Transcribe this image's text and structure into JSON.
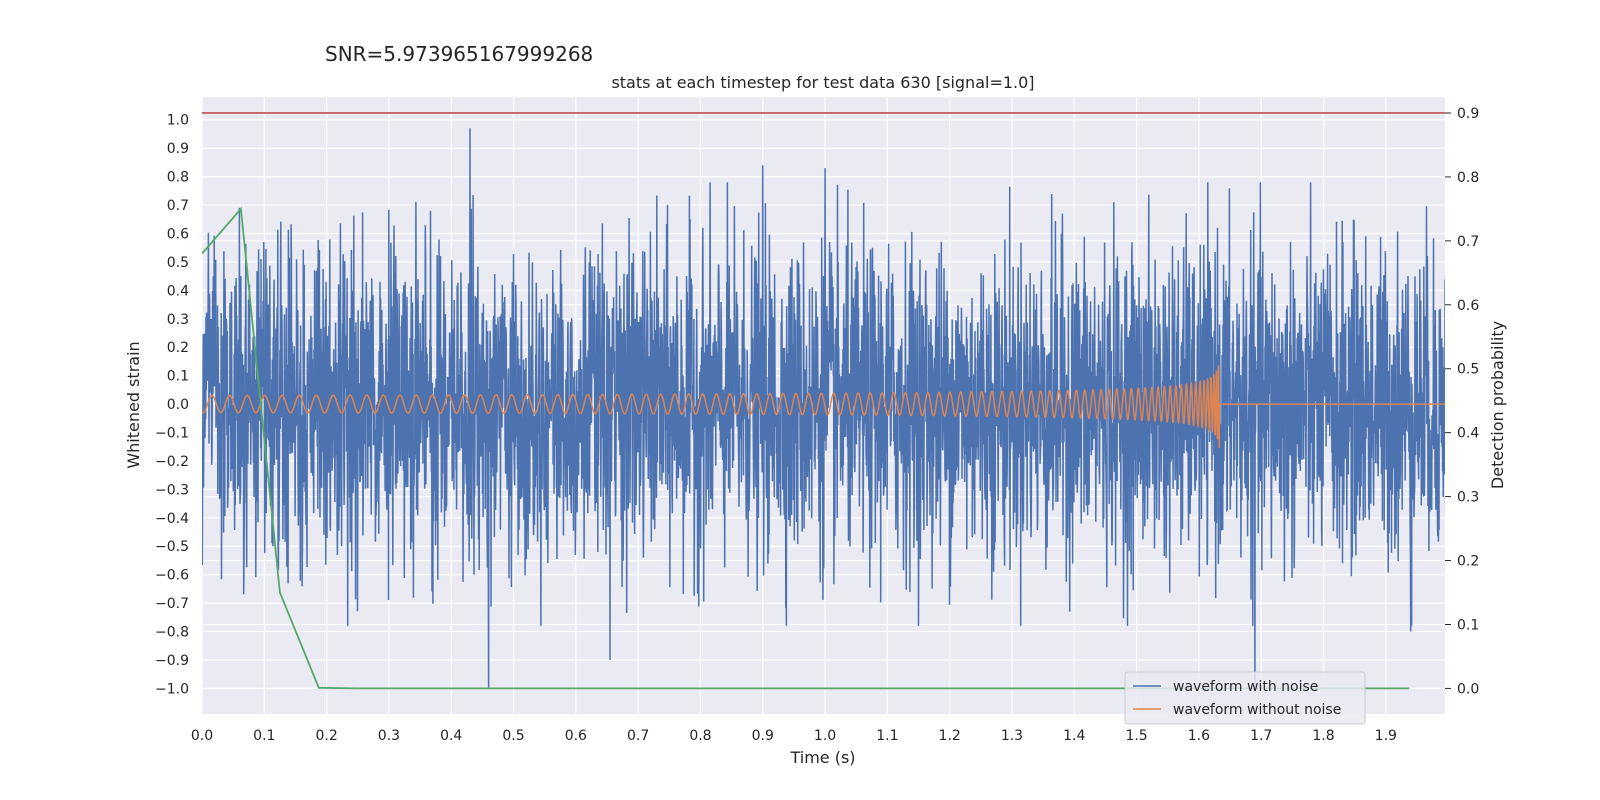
{
  "chart_data": {
    "type": "line",
    "suptitle": "SNR=5.973965167999268",
    "title": "stats at each timestep for test data 630 [signal=1.0]",
    "xlabel": "Time (s)",
    "ylabel": "Whitened strain",
    "ylabel_right": "Detection probability",
    "xlim": [
      0.0,
      1.995
    ],
    "ylim": [
      -1.09,
      1.08
    ],
    "ylim_right": [
      -0.04,
      0.925
    ],
    "xticks": [
      "0.0",
      "0.1",
      "0.2",
      "0.3",
      "0.4",
      "0.5",
      "0.6",
      "0.7",
      "0.8",
      "0.9",
      "1.0",
      "1.1",
      "1.2",
      "1.3",
      "1.4",
      "1.5",
      "1.6",
      "1.7",
      "1.8",
      "1.9"
    ],
    "yticks": [
      "1.0",
      "0.9",
      "0.8",
      "0.7",
      "0.6",
      "0.5",
      "0.4",
      "0.3",
      "0.2",
      "0.1",
      "0.0",
      "−0.1",
      "−0.2",
      "−0.3",
      "−0.4",
      "−0.5",
      "−0.6",
      "−0.7",
      "−0.8",
      "−0.9",
      "−1.0"
    ],
    "yticks_right": [
      "0.9",
      "0.8",
      "0.7",
      "0.6",
      "0.5",
      "0.4",
      "0.3",
      "0.2",
      "0.1",
      "0.0"
    ],
    "grid": true,
    "legend_position": "lower-right",
    "series": [
      {
        "name": "waveform with noise",
        "color": "#4c72b0",
        "axis": "left",
        "sample_rate": 2048,
        "duration": 2.0,
        "amplitude_std": 0.27,
        "peaks": [
          [
            0.06,
            0.69
          ],
          [
            0.43,
            0.97
          ],
          [
            0.46,
            -1.0
          ],
          [
            0.655,
            -0.9
          ],
          [
            0.9,
            0.84
          ],
          [
            1.0,
            0.83
          ],
          [
            1.69,
            -1.0
          ],
          [
            1.94,
            -0.8
          ]
        ]
      },
      {
        "name": "waveform without noise",
        "color": "#dd8452",
        "axis": "left",
        "chirp_start_freq_hz": 35,
        "merger_time": 1.635,
        "start_amplitude": 0.03,
        "peak_amplitude": 0.17,
        "post_merger_value": 0.0
      },
      {
        "name": "",
        "color": "#55a868",
        "axis": "right",
        "x": [
          0.0,
          0.0625,
          0.125,
          0.1875,
          0.25,
          0.3125,
          0.375,
          0.4375,
          0.5,
          0.5625,
          0.625,
          0.6875,
          0.75,
          0.8125,
          0.875,
          0.9375,
          1.0,
          1.0625,
          1.125,
          1.1875,
          1.25,
          1.3125,
          1.375,
          1.4375,
          1.5,
          1.5625,
          1.625,
          1.6875,
          1.75,
          1.8125,
          1.875,
          1.9375
        ],
        "y": [
          0.68,
          0.75,
          0.15,
          0.001,
          0.0,
          0.0,
          0.0,
          0.0,
          0.0,
          0.0,
          0.0,
          0.0,
          0.0,
          0.0,
          0.0,
          0.0,
          0.0,
          0.0,
          0.0,
          0.0,
          0.0,
          0.0,
          0.0,
          0.0,
          0.0,
          0.0,
          0.0,
          0.0,
          0.0,
          0.0,
          0.0,
          0.0
        ]
      }
    ],
    "threshold": {
      "axis": "right",
      "value": 0.9,
      "color": "#c44e52"
    }
  }
}
